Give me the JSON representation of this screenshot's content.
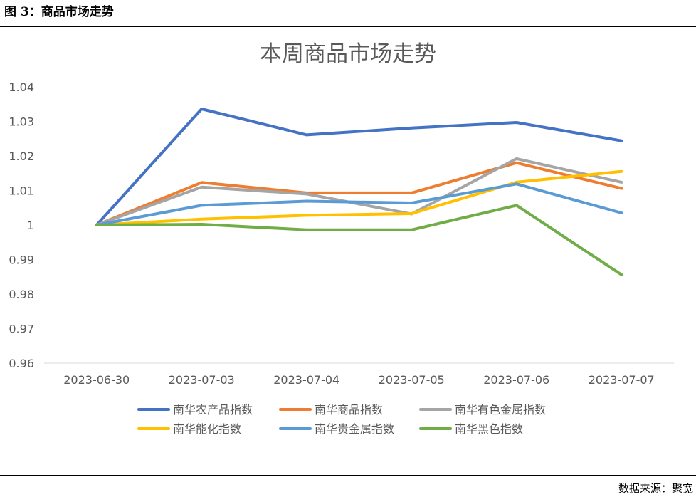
{
  "figure_caption": "图 3：商品市场走势",
  "source_text": "数据来源：聚宽",
  "colors": {
    "南华农产品指数": "#4472C4",
    "南华商品指数": "#ED7D31",
    "南华有色金属指数": "#A5A5A5",
    "南华能化指数": "#FFC000",
    "南华贵金属指数": "#5B9BD5",
    "南华黑色指数": "#70AD47"
  },
  "chart_data": {
    "type": "line",
    "title": "本周商品市场走势",
    "xlabel": "",
    "ylabel": "",
    "ylim": [
      0.96,
      1.04
    ],
    "yticks": [
      "0.96",
      "0.97",
      "0.98",
      "0.99",
      "1",
      "1.01",
      "1.02",
      "1.03",
      "1.04"
    ],
    "grid": false,
    "legend_position": "bottom",
    "categories": [
      "2023-06-30",
      "2023-07-03",
      "2023-07-04",
      "2023-07-05",
      "2023-07-06",
      "2023-07-07"
    ],
    "series": [
      {
        "name": "南华农产品指数",
        "values": [
          1.0,
          1.0336,
          1.0261,
          1.0281,
          1.0297,
          1.0244
        ]
      },
      {
        "name": "南华商品指数",
        "values": [
          1.0,
          1.0123,
          1.0093,
          1.0093,
          1.018,
          1.0106
        ]
      },
      {
        "name": "南华有色金属指数",
        "values": [
          1.0,
          1.011,
          1.009,
          1.0032,
          1.0192,
          1.0124
        ]
      },
      {
        "name": "南华能化指数",
        "values": [
          1.0,
          1.0017,
          1.0028,
          1.0033,
          1.0124,
          1.0155
        ]
      },
      {
        "name": "南华贵金属指数",
        "values": [
          1.0,
          1.0057,
          1.0069,
          1.0064,
          1.0119,
          1.0035
        ]
      },
      {
        "name": "南华黑色指数",
        "values": [
          1.0,
          1.0002,
          0.9986,
          0.9986,
          1.0057,
          0.9856
        ]
      }
    ]
  }
}
